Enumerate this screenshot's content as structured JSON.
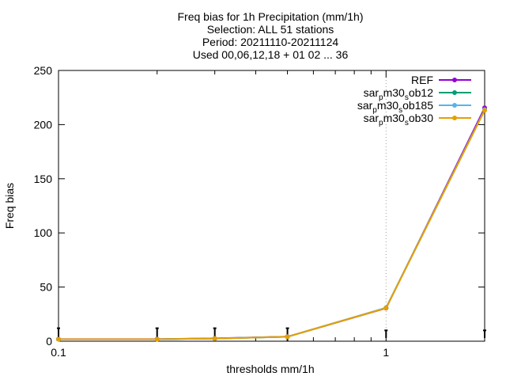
{
  "chart_data": {
    "type": "line",
    "title_lines": [
      "Freq bias  for 1h Precipitation (mm/1h)",
      "Selection: ALL      51 stations",
      "Period: 20211110-20211124",
      "Used 00,06,12,18 + 01 02 ... 36"
    ],
    "xlabel": "thresholds mm/1h",
    "ylabel": "Freq bias",
    "x_scale": "log",
    "xlim": [
      0.1,
      2
    ],
    "ylim": [
      0,
      250
    ],
    "x_ticks": [
      {
        "value": 0.1,
        "label": "0.1"
      },
      {
        "value": 1,
        "label": "1"
      }
    ],
    "y_ticks": [
      {
        "value": 0,
        "label": "0"
      },
      {
        "value": 50,
        "label": "50"
      },
      {
        "value": 100,
        "label": "100"
      },
      {
        "value": 150,
        "label": "150"
      },
      {
        "value": 200,
        "label": "200"
      },
      {
        "value": 250,
        "label": "250"
      }
    ],
    "grid": "dotted at x=1",
    "legend_position": "top-right",
    "x": [
      0.1,
      0.2,
      0.3,
      0.5,
      1,
      2
    ],
    "series": [
      {
        "legend": {
          "base": "REF"
        },
        "color": "#9400d3",
        "marker": "circle",
        "values": [
          1.9,
          1.9,
          2.6,
          4.2,
          30.5,
          215.5
        ]
      },
      {
        "legend": {
          "base": "sar",
          "sub1": "p",
          "mid": "m30",
          "sub2": "s",
          "tail": "ob12"
        },
        "color": "#009e73",
        "marker": "circle",
        "values": [
          1.8,
          1.8,
          2.5,
          4.1,
          30.8,
          213.5
        ]
      },
      {
        "legend": {
          "base": "sar",
          "sub1": "p",
          "mid": "m30",
          "sub2": "s",
          "tail": "ob185"
        },
        "color": "#56b4e9",
        "marker": "circle",
        "values": [
          1.8,
          1.8,
          2.5,
          4.1,
          30.9,
          213.8
        ]
      },
      {
        "legend": {
          "base": "sar",
          "sub1": "p",
          "mid": "m30",
          "sub2": "s",
          "tail": "ob30"
        },
        "color": "#e69f00",
        "marker": "circle",
        "values": [
          1.8,
          1.8,
          2.5,
          4.1,
          30.6,
          213.2
        ]
      }
    ],
    "error_bars": {
      "color": "#000000",
      "x": [
        0.1,
        0.2,
        0.3,
        0.5,
        1,
        2
      ],
      "low": [
        0,
        0,
        0,
        0,
        3,
        3
      ],
      "high": [
        12,
        12,
        12,
        12,
        10,
        10
      ]
    }
  }
}
